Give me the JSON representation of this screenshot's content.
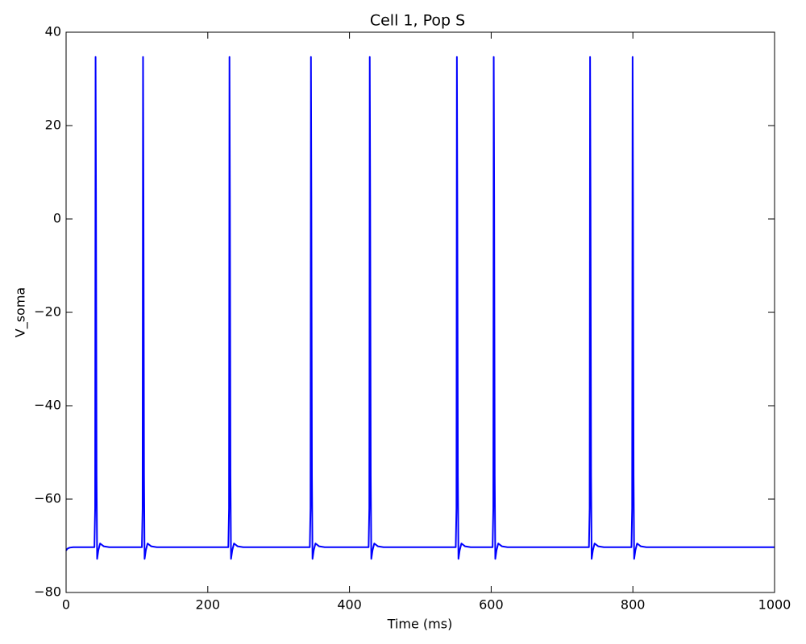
{
  "chart_data": {
    "type": "line",
    "title": "Cell 1, Pop S",
    "xlabel": "Time (ms)",
    "ylabel": "V_soma",
    "color": "#0000ff",
    "grid": false,
    "x": [
      0,
      2,
      5,
      10,
      40,
      41,
      41.6,
      42.2,
      43,
      43.8,
      45.5,
      48,
      53,
      61,
      107,
      108,
      108.6,
      109.2,
      110,
      110.8,
      112.5,
      115,
      120,
      128,
      229,
      230,
      230.6,
      231.2,
      232,
      232.8,
      234.5,
      237,
      242,
      250,
      344,
      345,
      345.6,
      346.2,
      347,
      347.8,
      349.5,
      352,
      357,
      365,
      427,
      428,
      428.6,
      429.2,
      430,
      430.8,
      432.5,
      435,
      440,
      448,
      550,
      551,
      551.6,
      552.2,
      553,
      553.8,
      555.5,
      558,
      563,
      571,
      602,
      603,
      603.6,
      604.2,
      605,
      605.8,
      607.5,
      610,
      615,
      623,
      738,
      739,
      739.6,
      740.2,
      741,
      741.8,
      743.5,
      746,
      751,
      759,
      798,
      799,
      799.6,
      800.2,
      801,
      801.8,
      803.5,
      806,
      811,
      819,
      1000
    ],
    "values": [
      -71,
      -70.6,
      -70.4,
      -70.3,
      -70.3,
      -62,
      34.7,
      5,
      -55,
      -72.8,
      -71,
      -69.5,
      -70.1,
      -70.3,
      -70.3,
      -62,
      34.7,
      5,
      -55,
      -72.8,
      -71,
      -69.5,
      -70.1,
      -70.3,
      -70.3,
      -62,
      34.7,
      5,
      -55,
      -72.8,
      -71,
      -69.5,
      -70.1,
      -70.3,
      -70.3,
      -62,
      34.7,
      5,
      -55,
      -72.8,
      -71,
      -69.5,
      -70.1,
      -70.3,
      -70.3,
      -62,
      34.7,
      5,
      -55,
      -72.8,
      -71,
      -69.5,
      -70.1,
      -70.3,
      -70.3,
      -62,
      34.7,
      5,
      -55,
      -72.8,
      -71,
      -69.5,
      -70.1,
      -70.3,
      -70.3,
      -62,
      34.7,
      5,
      -55,
      -72.8,
      -71,
      -69.5,
      -70.1,
      -70.3,
      -70.3,
      -62,
      34.7,
      5,
      -55,
      -72.8,
      -71,
      -69.5,
      -70.1,
      -70.3,
      -70.3,
      -62,
      34.7,
      5,
      -55,
      -72.8,
      -71,
      -69.5,
      -70.1,
      -70.3,
      -70.3
    ],
    "xlim": [
      0,
      1000
    ],
    "xticks": [
      0,
      200,
      400,
      600,
      800,
      1000
    ],
    "ylim": [
      -80,
      40
    ],
    "yticks": [
      {
        "value": -80,
        "label": "−80"
      },
      {
        "value": -60,
        "label": "−60"
      },
      {
        "value": -40,
        "label": "−40"
      },
      {
        "value": -20,
        "label": "−20"
      },
      0,
      20,
      40
    ]
  }
}
